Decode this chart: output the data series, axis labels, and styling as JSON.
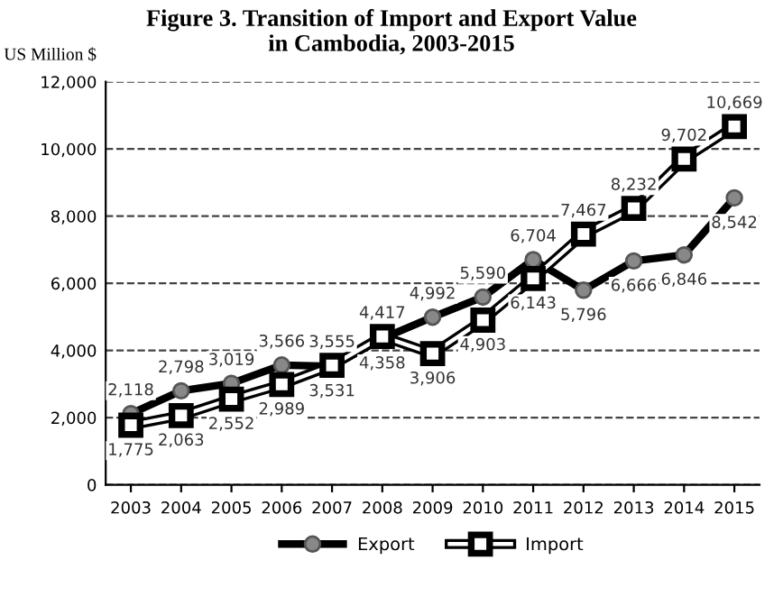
{
  "chart_data": {
    "type": "line",
    "title": "Figure 3. Transition of Import and Export Value\nin Cambodia, 2003-2015",
    "ylabel": "US Million $",
    "categories": [
      "2003",
      "2004",
      "2005",
      "2006",
      "2007",
      "2008",
      "2009",
      "2010",
      "2011",
      "2012",
      "2013",
      "2014",
      "2015"
    ],
    "series": [
      {
        "name": "Export",
        "color": "#000000",
        "marker": "circle",
        "values": [
          2118,
          2798,
          3019,
          3566,
          3531,
          4358,
          4992,
          5590,
          6704,
          5796,
          6666,
          6846,
          8542
        ],
        "value_labels": [
          "2,118",
          "2,798",
          "3,019",
          "3,566",
          "3,531",
          "4,358",
          "4,992",
          "5,590",
          "6,704",
          "5,796",
          "6,666",
          "6,846",
          "8,542"
        ]
      },
      {
        "name": "Import",
        "color": "#000000",
        "marker": "square",
        "values": [
          1775,
          2063,
          2552,
          2989,
          3555,
          4417,
          3906,
          4903,
          6143,
          7467,
          8232,
          9702,
          10669
        ],
        "value_labels": [
          "1,775",
          "2,063",
          "2,552",
          "2,989",
          "3,555",
          "4,417",
          "3,906",
          "4,903",
          "6,143",
          "7,467",
          "8,232",
          "9,702",
          "10,669"
        ]
      }
    ],
    "ylim": [
      0,
      12000
    ],
    "yticks": [
      {
        "value": 0,
        "label": "0"
      },
      {
        "value": 2000,
        "label": "2,000"
      },
      {
        "value": 4000,
        "label": "4,000"
      },
      {
        "value": 6000,
        "label": "6,000"
      },
      {
        "value": 8000,
        "label": "8,000"
      },
      {
        "value": 10000,
        "label": "10,000"
      },
      {
        "value": 12000,
        "label": "12,000"
      }
    ],
    "grid": "y",
    "legend": "bottom"
  }
}
